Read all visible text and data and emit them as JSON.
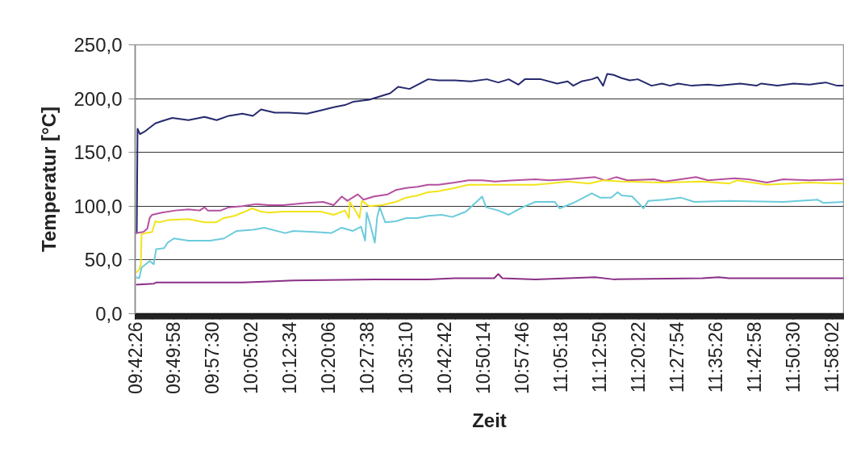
{
  "chart_data": {
    "type": "line",
    "xlabel": "Zeit",
    "ylabel": "Temperatur [°C]",
    "xlim": [
      9.7072,
      12.0044
    ],
    "xticks": [
      {
        "value": 9.70722,
        "label": "09:42:26"
      },
      {
        "value": 9.83278,
        "label": "09:49:58"
      },
      {
        "value": 9.95833,
        "label": "09:57:30"
      },
      {
        "value": 10.08389,
        "label": "10:05:02"
      },
      {
        "value": 10.20944,
        "label": "10:12:34"
      },
      {
        "value": 10.335,
        "label": "10:20:06"
      },
      {
        "value": 10.46056,
        "label": "10:27:38"
      },
      {
        "value": 10.58611,
        "label": "10:35:10"
      },
      {
        "value": 10.71167,
        "label": "10:42:42"
      },
      {
        "value": 10.83722,
        "label": "10:50:14"
      },
      {
        "value": 10.96278,
        "label": "10:57:46"
      },
      {
        "value": 11.08833,
        "label": "11:05:18"
      },
      {
        "value": 11.21389,
        "label": "11:12:50"
      },
      {
        "value": 11.33944,
        "label": "11:20:22"
      },
      {
        "value": 11.465,
        "label": "11:27:54"
      },
      {
        "value": 11.59056,
        "label": "11:35:26"
      },
      {
        "value": 11.71611,
        "label": "11:42:58"
      },
      {
        "value": 11.84167,
        "label": "11:50:30"
      },
      {
        "value": 11.96722,
        "label": "11:58:02"
      }
    ],
    "ylim": [
      0,
      250
    ],
    "yticks": [
      {
        "value": 0,
        "label": "0,0"
      },
      {
        "value": 50,
        "label": "50,0"
      },
      {
        "value": 100,
        "label": "100,0"
      },
      {
        "value": 150,
        "label": "150,0"
      },
      {
        "value": 200,
        "label": "200,0"
      },
      {
        "value": 250,
        "label": "250,0"
      }
    ],
    "grid": "y",
    "line_style": "solid",
    "series": [
      {
        "color": "#262a6e",
        "x": [
          9.7098,
          9.7124,
          9.715,
          9.7229,
          9.7412,
          9.7726,
          9.7935,
          9.8276,
          9.8799,
          9.9322,
          9.9715,
          10.0107,
          10.0552,
          10.0892,
          10.1154,
          10.1598,
          10.2043,
          10.2645,
          10.309,
          10.3508,
          10.3875,
          10.4136,
          10.466,
          10.5,
          10.534,
          10.5601,
          10.5968,
          10.6308,
          10.657,
          10.691,
          10.7433,
          10.7956,
          10.848,
          10.8846,
          10.9186,
          10.95,
          10.9709,
          11.0232,
          11.0756,
          11.1096,
          11.1279,
          11.1541,
          11.1881,
          11.2064,
          11.2247,
          11.2378,
          11.2587,
          11.2849,
          11.3111,
          11.3372,
          11.3817,
          11.4157,
          11.4419,
          11.468,
          11.5125,
          11.5648,
          11.5989,
          11.6695,
          11.7218,
          11.7375,
          11.7899,
          11.8422,
          11.8945,
          11.9468,
          11.9835,
          12.0044
        ],
        "values": [
          75,
          75,
          172,
          167,
          170,
          177,
          179,
          182,
          180,
          183,
          180,
          184,
          186,
          184,
          190,
          187,
          187,
          186,
          189,
          192,
          194,
          197,
          199,
          202,
          205,
          211,
          209,
          214,
          218,
          217,
          217,
          216,
          218,
          215,
          218,
          213,
          218,
          218,
          214,
          216,
          212,
          216,
          218,
          220,
          212,
          223,
          222,
          219,
          217,
          218,
          212,
          214,
          212,
          214,
          212,
          213,
          212,
          214,
          212,
          214,
          212,
          214,
          213,
          215,
          212,
          212
        ]
      },
      {
        "color": "#b5509e",
        "x": [
          9.7098,
          9.7334,
          9.7464,
          9.7543,
          9.7621,
          9.7935,
          9.838,
          9.8799,
          9.9165,
          9.9322,
          9.9427,
          9.9845,
          10.0107,
          10.0552,
          10.0997,
          10.1415,
          10.186,
          10.2645,
          10.3168,
          10.3508,
          10.377,
          10.3953,
          10.4293,
          10.4476,
          10.4817,
          10.5261,
          10.5523,
          10.5863,
          10.6229,
          10.657,
          10.691,
          10.7433,
          10.7878,
          10.8323,
          10.8741,
          10.9369,
          11.0049,
          11.0494,
          11.1096,
          11.1985,
          11.2326,
          11.2666,
          11.3032,
          11.3895,
          11.4236,
          11.4759,
          11.5256,
          11.5648,
          11.6512,
          11.6957,
          11.7558,
          11.8082,
          11.8945,
          12.0044
        ],
        "values": [
          75,
          76,
          79,
          89,
          92,
          94,
          96,
          97,
          96,
          99,
          96,
          96,
          99,
          100,
          102,
          101,
          101,
          103,
          104,
          101,
          109,
          105,
          111,
          106,
          109,
          111,
          115,
          117,
          118,
          120,
          120,
          122,
          124,
          124,
          123,
          124,
          125,
          124,
          125,
          127,
          124,
          127,
          124,
          125,
          123,
          125,
          127,
          124,
          126,
          125,
          122,
          125,
          124,
          125
        ]
      },
      {
        "color": "#f2e41a",
        "x": [
          9.7098,
          9.7203,
          9.7255,
          9.7281,
          9.7412,
          9.7621,
          9.7726,
          9.7857,
          9.8119,
          9.8799,
          9.9322,
          9.9688,
          9.995,
          10.029,
          10.0552,
          10.0866,
          10.1154,
          10.1415,
          10.186,
          10.22,
          10.309,
          10.3508,
          10.3875,
          10.4005,
          10.4032,
          10.4215,
          10.4346,
          10.4424,
          10.466,
          10.5078,
          10.5523,
          10.5863,
          10.6229,
          10.657,
          10.691,
          10.7433,
          10.7878,
          10.8323,
          10.9186,
          11.0049,
          11.0494,
          11.1096,
          11.1802,
          11.2247,
          11.2849,
          11.4157,
          11.5465,
          11.6329,
          11.659,
          11.7558,
          11.8945,
          12.0044
        ],
        "values": [
          38,
          41,
          46,
          74,
          75,
          76,
          86,
          85,
          87,
          88,
          85,
          85,
          89,
          91,
          94,
          98,
          95,
          94,
          95,
          95,
          95,
          92,
          96,
          89,
          104,
          96,
          89,
          105,
          100,
          101,
          104,
          108,
          110,
          113,
          114,
          117,
          120,
          120,
          120,
          120,
          121,
          123,
          121,
          124,
          123,
          122,
          123,
          121,
          124,
          120,
          122,
          121
        ]
      },
      {
        "color": "#6ccbdc",
        "x": [
          9.7098,
          9.7203,
          9.7281,
          9.7412,
          9.7543,
          9.7674,
          9.7752,
          9.8014,
          9.8119,
          9.8328,
          9.8799,
          9.9505,
          9.995,
          10.0369,
          10.0892,
          10.1258,
          10.1939,
          10.22,
          10.2907,
          10.343,
          10.377,
          10.4136,
          10.4398,
          10.4529,
          10.4581,
          10.4686,
          10.4843,
          10.4921,
          10.5,
          10.5183,
          10.5523,
          10.5863,
          10.6229,
          10.657,
          10.7014,
          10.7354,
          10.7799,
          10.8139,
          10.8323,
          10.8453,
          10.8846,
          10.9186,
          10.9631,
          11.0049,
          11.0677,
          11.0834,
          11.1279,
          11.1881,
          11.2142,
          11.2509,
          11.2718,
          11.2849,
          11.3189,
          11.3555,
          11.3712,
          11.4236,
          11.4759,
          11.5204,
          11.6329,
          11.8082,
          11.9207,
          11.939,
          12.0044
        ],
        "values": [
          34,
          33,
          43,
          46,
          49,
          46,
          60,
          61,
          66,
          70,
          68,
          68,
          70,
          77,
          78,
          80,
          75,
          77,
          76,
          75,
          80,
          77,
          81,
          68,
          94,
          84,
          66,
          90,
          99,
          85,
          86,
          89,
          89,
          91,
          92,
          90,
          95,
          104,
          109,
          99,
          96,
          92,
          99,
          104,
          104,
          98,
          103,
          112,
          108,
          108,
          113,
          110,
          109,
          98,
          105,
          106,
          108,
          104,
          105,
          104,
          106,
          103,
          104
        ]
      },
      {
        "color": "#8b2f87",
        "x": [
          9.7098,
          9.7674,
          9.7752,
          10.0552,
          10.1415,
          10.22,
          10.4817,
          10.657,
          10.7433,
          10.8715,
          10.8846,
          10.8977,
          11.0049,
          11.1985,
          11.2587,
          11.5465,
          11.5989,
          11.6329,
          12.0044
        ],
        "values": [
          27,
          28,
          29,
          29,
          30,
          31,
          32,
          32,
          33,
          33,
          37,
          33,
          32,
          34,
          32,
          33,
          34,
          33,
          33
        ]
      }
    ]
  }
}
